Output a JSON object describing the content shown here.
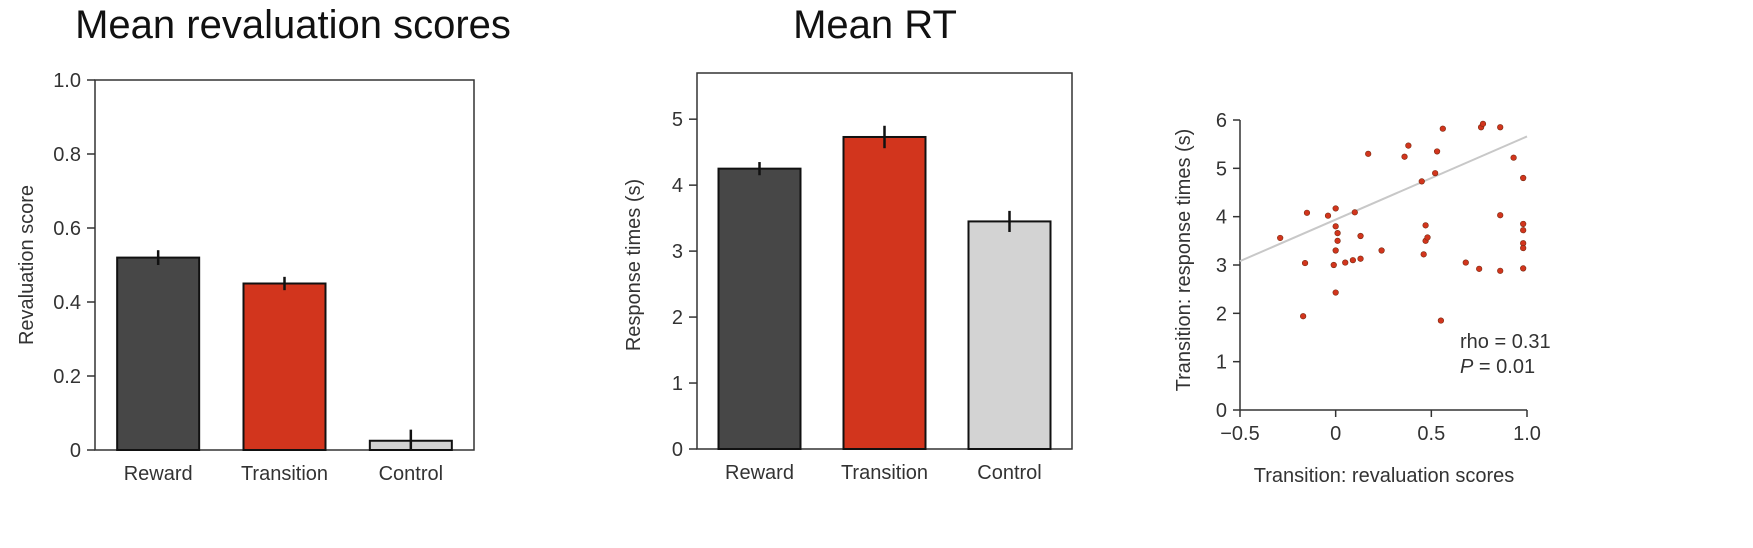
{
  "chart_data": [
    {
      "type": "bar",
      "title": "Mean revaluation scores",
      "xlabel": "",
      "ylabel": "Revaluation score",
      "ylim": [
        0,
        1.0
      ],
      "yticks": [
        "0",
        "0.2",
        "0.4",
        "0.6",
        "0.8",
        "1.0"
      ],
      "yticks_values": [
        0,
        0.2,
        0.4,
        0.6,
        0.8,
        1.0
      ],
      "categories": [
        "Reward",
        "Transition",
        "Control"
      ],
      "values": [
        0.52,
        0.45,
        0.025
      ],
      "errors": [
        0.02,
        0.018,
        0.03
      ],
      "colors": [
        "#474747",
        "#d2351d",
        "#d3d3d3"
      ]
    },
    {
      "type": "bar",
      "title": "Mean RT",
      "xlabel": "",
      "ylabel": "Response times (s)",
      "ylim": [
        0,
        5.7
      ],
      "yticks": [
        "0",
        "1",
        "2",
        "3",
        "4",
        "5"
      ],
      "yticks_values": [
        0,
        1,
        2,
        3,
        4,
        5
      ],
      "categories": [
        "Reward",
        "Transition",
        "Control"
      ],
      "values": [
        4.25,
        4.73,
        3.45
      ],
      "errors": [
        0.1,
        0.17,
        0.16
      ],
      "colors": [
        "#474747",
        "#d2351d",
        "#d3d3d3"
      ]
    },
    {
      "type": "scatter",
      "title": "",
      "xlabel": "Transition: revaluation scores",
      "ylabel": "Transition: response times (s)",
      "xlim": [
        -0.5,
        1.0
      ],
      "ylim": [
        0,
        6
      ],
      "xticks": [
        "−0.5",
        "0",
        "0.5",
        "1.0"
      ],
      "xticks_values": [
        -0.5,
        0,
        0.5,
        1.0
      ],
      "yticks": [
        "0",
        "1",
        "2",
        "3",
        "4",
        "5",
        "6"
      ],
      "yticks_values": [
        0,
        1,
        2,
        3,
        4,
        5,
        6
      ],
      "point_color": "#d2351d",
      "fit_color": "#c8c8c8",
      "fit_line": {
        "x": [
          -0.5,
          1.0
        ],
        "y": [
          3.08,
          5.66
        ]
      },
      "annotation": {
        "rho_text": "rho = 0.31",
        "p_label": "P",
        "p_value_text": " = 0.01"
      },
      "points": [
        {
          "x": -0.29,
          "y": 3.56
        },
        {
          "x": -0.15,
          "y": 4.08
        },
        {
          "x": -0.16,
          "y": 3.04
        },
        {
          "x": -0.17,
          "y": 1.94
        },
        {
          "x": -0.04,
          "y": 4.02
        },
        {
          "x": 0.0,
          "y": 4.17
        },
        {
          "x": 0.0,
          "y": 3.8
        },
        {
          "x": 0.01,
          "y": 3.66
        },
        {
          "x": 0.01,
          "y": 3.5
        },
        {
          "x": 0.0,
          "y": 3.3
        },
        {
          "x": -0.01,
          "y": 3.0
        },
        {
          "x": 0.0,
          "y": 2.43
        },
        {
          "x": 0.05,
          "y": 3.05
        },
        {
          "x": 0.09,
          "y": 3.1
        },
        {
          "x": 0.1,
          "y": 4.09
        },
        {
          "x": 0.13,
          "y": 3.6
        },
        {
          "x": 0.13,
          "y": 3.13
        },
        {
          "x": 0.17,
          "y": 5.3
        },
        {
          "x": 0.24,
          "y": 3.3
        },
        {
          "x": 0.36,
          "y": 5.24
        },
        {
          "x": 0.38,
          "y": 5.47
        },
        {
          "x": 0.45,
          "y": 4.73
        },
        {
          "x": 0.47,
          "y": 3.82
        },
        {
          "x": 0.47,
          "y": 3.5
        },
        {
          "x": 0.46,
          "y": 3.22
        },
        {
          "x": 0.48,
          "y": 3.57
        },
        {
          "x": 0.52,
          "y": 4.9
        },
        {
          "x": 0.53,
          "y": 5.35
        },
        {
          "x": 0.56,
          "y": 5.82
        },
        {
          "x": 0.55,
          "y": 1.85
        },
        {
          "x": 0.68,
          "y": 3.05
        },
        {
          "x": 0.75,
          "y": 2.92
        },
        {
          "x": 0.76,
          "y": 5.85
        },
        {
          "x": 0.77,
          "y": 5.92
        },
        {
          "x": 0.86,
          "y": 5.85
        },
        {
          "x": 0.86,
          "y": 4.03
        },
        {
          "x": 0.86,
          "y": 2.88
        },
        {
          "x": 0.93,
          "y": 5.22
        },
        {
          "x": 0.98,
          "y": 4.8
        },
        {
          "x": 0.98,
          "y": 3.85
        },
        {
          "x": 0.98,
          "y": 3.72
        },
        {
          "x": 0.98,
          "y": 3.45
        },
        {
          "x": 0.98,
          "y": 3.35
        },
        {
          "x": 0.98,
          "y": 2.93
        }
      ]
    }
  ]
}
